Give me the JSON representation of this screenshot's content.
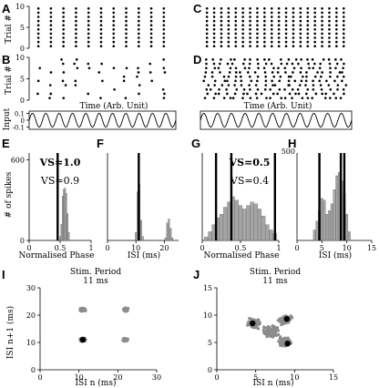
{
  "panel_letters": [
    "A",
    "B",
    "C",
    "D",
    "E",
    "F",
    "G",
    "H",
    "I",
    "J"
  ],
  "labels": {
    "trial": "Trial #",
    "time": "Time (Arb. Unit)",
    "input": "Input",
    "n_spikes": "# of spikes",
    "norm_phase": "Normalised Phase",
    "isi_ms": "ISI (ms)",
    "isi_n": "ISI n (ms)",
    "isi_n1": "ISI n+1 (ms)",
    "stim_period": "Stim. Period",
    "stim_value": "11 ms"
  },
  "colors": {
    "ink": "#000000",
    "gray_bar": "#a6a6a6",
    "scatter": "#8c8c8c"
  },
  "chart_data": [
    {
      "panel": "A",
      "type": "scatter",
      "subtype": "raster",
      "ylabel": "Trial #",
      "yticks": [
        0,
        5,
        10
      ],
      "ylim": [
        0,
        10
      ],
      "x_range": [
        0,
        1
      ],
      "trials": 10,
      "spike_x": [
        0.04,
        0.13,
        0.22,
        0.31,
        0.4,
        0.49,
        0.58,
        0.67,
        0.76,
        0.85,
        0.94
      ],
      "jitter": 0.0,
      "dropout": 0.0
    },
    {
      "panel": "B",
      "type": "scatter",
      "subtype": "raster",
      "ylabel": "Trial #",
      "yticks": [
        0,
        5,
        10
      ],
      "ylim": [
        0,
        10
      ],
      "x_range": [
        0,
        1
      ],
      "trials": 10,
      "spike_x": [
        0.04,
        0.13,
        0.22,
        0.31,
        0.4,
        0.49,
        0.58,
        0.67,
        0.76,
        0.85,
        0.94
      ],
      "jitter": 0.012,
      "dropout": 0.5
    },
    {
      "panel": "B-input",
      "type": "line",
      "ylabel": "Input",
      "yticks": [
        -0.1,
        0,
        0.1
      ],
      "ylim": [
        -0.1,
        0.1
      ],
      "xlabel": "Time (Arb. Unit)",
      "cycles": 11,
      "amplitude": 0.1
    },
    {
      "panel": "C",
      "type": "scatter",
      "subtype": "raster",
      "ylim": [
        0,
        10
      ],
      "x_range": [
        0,
        1
      ],
      "trials": 10,
      "spike_x": [
        0.02,
        0.07,
        0.12,
        0.17,
        0.22,
        0.27,
        0.32,
        0.37,
        0.42,
        0.47,
        0.52,
        0.57,
        0.62,
        0.67,
        0.72,
        0.77,
        0.82,
        0.87,
        0.92,
        0.97
      ],
      "jitter": 0.0,
      "dropout": 0.0
    },
    {
      "panel": "D",
      "type": "scatter",
      "subtype": "raster",
      "ylim": [
        0,
        10
      ],
      "x_range": [
        0,
        1
      ],
      "trials": 10,
      "spike_x": [
        0.02,
        0.07,
        0.12,
        0.17,
        0.22,
        0.27,
        0.32,
        0.37,
        0.42,
        0.47,
        0.52,
        0.57,
        0.62,
        0.67,
        0.72,
        0.77,
        0.82,
        0.87,
        0.92,
        0.97
      ],
      "jitter": 0.02,
      "dropout": 0.0
    },
    {
      "panel": "D-input",
      "type": "line",
      "xlabel": "Time (Arb. Unit)",
      "cycles": 11,
      "amplitude": 0.1
    },
    {
      "panel": "E",
      "type": "bar",
      "subtype": "histogram",
      "xlabel": "Normalised Phase",
      "ylabel": "# of spikes",
      "xlim": [
        0,
        1
      ],
      "ylim": [
        0,
        650
      ],
      "xticks": [
        0,
        0.5,
        1
      ],
      "yticks": [
        0,
        600
      ],
      "bin_centers": [
        0.5,
        0.52,
        0.54,
        0.56,
        0.58,
        0.6,
        0.62,
        0.64
      ],
      "values": [
        30,
        120,
        330,
        380,
        390,
        350,
        200,
        60
      ],
      "markers": [
        0.46
      ],
      "annotations": [
        {
          "text": "VS=1.0",
          "color": "#000000",
          "bold": true
        },
        {
          "text": "VS=0.9",
          "color": "#8c8c8c",
          "bold": false
        }
      ]
    },
    {
      "panel": "F",
      "type": "bar",
      "subtype": "histogram",
      "xlabel": "ISI (ms)",
      "xlim": [
        0,
        25
      ],
      "xticks": [
        0,
        10,
        20
      ],
      "ylim": [
        0,
        650
      ],
      "bin_centers": [
        10.0,
        10.6,
        11.2,
        11.8,
        12.4,
        20.4,
        21.0,
        21.6,
        22.2,
        22.8
      ],
      "values": [
        60,
        360,
        420,
        150,
        30,
        20,
        130,
        160,
        90,
        20
      ],
      "markers": [
        11
      ]
    },
    {
      "panel": "G",
      "type": "bar",
      "subtype": "histogram",
      "xlabel": "Normalised Phase",
      "xlim": [
        0,
        1
      ],
      "xticks": [
        0,
        0.5,
        1
      ],
      "ylim": [
        0,
        500
      ],
      "bin_centers": [
        0.05,
        0.1,
        0.15,
        0.2,
        0.25,
        0.3,
        0.35,
        0.4,
        0.45,
        0.5,
        0.55,
        0.6,
        0.65,
        0.7,
        0.75,
        0.8,
        0.85,
        0.9,
        0.95
      ],
      "values": [
        20,
        50,
        90,
        130,
        150,
        190,
        220,
        250,
        230,
        200,
        180,
        200,
        220,
        210,
        180,
        140,
        90,
        60,
        40
      ],
      "markers": [
        0.18,
        0.38,
        0.95
      ],
      "annotations": [
        {
          "text": "VS=0.5",
          "color": "#000000",
          "bold": true
        },
        {
          "text": "VS=0.4",
          "color": "#8c8c8c",
          "bold": false
        }
      ]
    },
    {
      "panel": "H",
      "type": "bar",
      "subtype": "histogram",
      "xlabel": "ISI (ms)",
      "xlim": [
        0,
        15
      ],
      "xticks": [
        0,
        5,
        10,
        15
      ],
      "ylim": [
        0,
        500
      ],
      "yticks": [
        500
      ],
      "bin_centers": [
        3.5,
        4.0,
        4.5,
        5.0,
        5.5,
        6.0,
        6.5,
        7.0,
        7.5,
        8.0,
        8.5,
        9.0,
        9.5,
        10.0,
        10.5
      ],
      "values": [
        60,
        110,
        170,
        240,
        230,
        150,
        170,
        210,
        290,
        370,
        390,
        340,
        270,
        150,
        50
      ],
      "markers": [
        4.5,
        8.8,
        9.5
      ]
    },
    {
      "panel": "I",
      "type": "scatter",
      "title": "Stim. Period",
      "subtitle": "11 ms",
      "xlabel": "ISI n (ms)",
      "ylabel": "ISI n+1 (ms)",
      "xlim": [
        0,
        30
      ],
      "ylim": [
        0,
        30
      ],
      "xticks": [
        0,
        10,
        20,
        30
      ],
      "yticks": [
        0,
        10,
        20,
        30
      ],
      "clusters": [
        {
          "x": 11,
          "y": 11,
          "spread": 0.8,
          "n": 70
        },
        {
          "x": 11,
          "y": 22,
          "spread": 0.8,
          "n": 55
        },
        {
          "x": 22,
          "y": 11,
          "spread": 0.8,
          "n": 55
        },
        {
          "x": 22,
          "y": 22,
          "spread": 0.8,
          "n": 45
        }
      ],
      "highlights": [
        {
          "x": 11,
          "y": 11
        }
      ]
    },
    {
      "panel": "J",
      "type": "scatter",
      "title": "Stim. Period",
      "subtitle": "11 ms",
      "xlabel": "ISI n (ms)",
      "xlim": [
        0,
        15
      ],
      "ylim": [
        0,
        15
      ],
      "xticks": [
        0,
        5,
        10,
        15
      ],
      "yticks": [
        0,
        5,
        10,
        15
      ],
      "clusters": [
        {
          "x": 4.8,
          "y": 8.5,
          "spread": 0.9,
          "n": 140
        },
        {
          "x": 8.8,
          "y": 9.2,
          "spread": 0.9,
          "n": 140
        },
        {
          "x": 8.8,
          "y": 5.0,
          "spread": 0.9,
          "n": 130
        },
        {
          "x": 7.0,
          "y": 7.0,
          "spread": 1.2,
          "n": 120
        }
      ],
      "highlights": [
        {
          "x": 4.6,
          "y": 8.5
        },
        {
          "x": 9.0,
          "y": 9.3
        },
        {
          "x": 9.1,
          "y": 4.8
        }
      ]
    }
  ]
}
